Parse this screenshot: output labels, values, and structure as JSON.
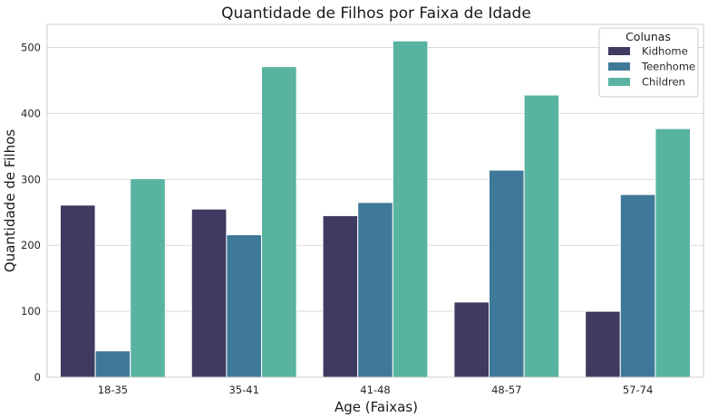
{
  "chart_data": {
    "type": "bar",
    "title": "Quantidade de Filhos por Faixa de Idade",
    "xlabel": "Age (Faixas)",
    "ylabel": "Quantidade de Filhos",
    "categories": [
      "18-35",
      "35-41",
      "41-48",
      "48-57",
      "57-74"
    ],
    "series": [
      {
        "name": "Kidhome",
        "color": "#3f3a60",
        "values": [
          261,
          255,
          245,
          114,
          100
        ]
      },
      {
        "name": "Teenhome",
        "color": "#3f7898",
        "values": [
          40,
          216,
          265,
          314,
          277
        ]
      },
      {
        "name": "Children",
        "color": "#59b3a1",
        "values": [
          301,
          471,
          510,
          428,
          377
        ]
      }
    ],
    "ylim": [
      0,
      535
    ],
    "yticks": [
      0,
      100,
      200,
      300,
      400,
      500
    ],
    "grid": "horizontal",
    "legend": {
      "title": "Colunas",
      "placement": "top-right"
    }
  }
}
